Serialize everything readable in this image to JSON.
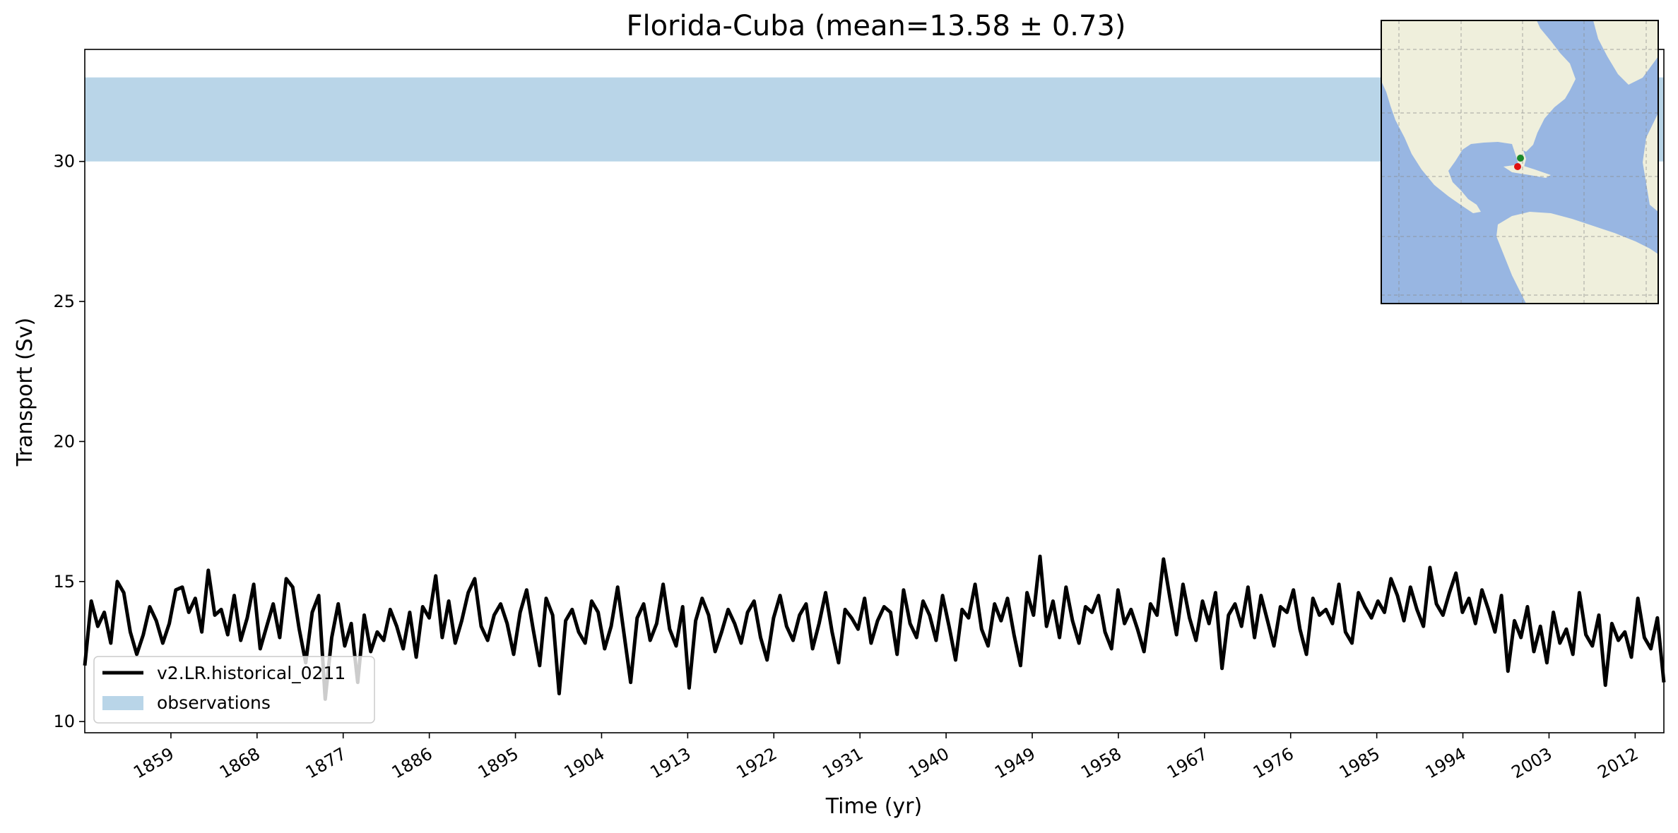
{
  "chart_data": {
    "type": "line",
    "title": "Florida-Cuba (mean=13.58 ± 0.73)",
    "xlabel": "Time (yr)",
    "ylabel": "Transport (Sv)",
    "xlim": [
      1850,
      2015
    ],
    "ylim": [
      9.6,
      34.0
    ],
    "xticks": [
      1859,
      1868,
      1877,
      1886,
      1895,
      1904,
      1913,
      1922,
      1931,
      1940,
      1949,
      1958,
      1967,
      1976,
      1985,
      1994,
      2003,
      2012
    ],
    "yticks": [
      10,
      15,
      20,
      25,
      30
    ],
    "grid": false,
    "legend_position": "lower-left",
    "series": [
      {
        "name": "v2.LR.historical_0211",
        "color": "#000000",
        "x_start": 1850,
        "x_end": 2015,
        "approx_mean": 13.6,
        "approx_range": [
          10.7,
          15.9
        ],
        "values": [
          12.0,
          14.3,
          13.4,
          13.9,
          12.8,
          15.0,
          14.6,
          13.2,
          12.4,
          13.1,
          14.1,
          13.6,
          12.8,
          13.5,
          14.7,
          14.8,
          13.9,
          14.4,
          13.2,
          15.4,
          13.8,
          14.0,
          13.1,
          14.5,
          12.9,
          13.7,
          14.9,
          12.6,
          13.4,
          14.2,
          13.0,
          15.1,
          14.8,
          13.3,
          12.1,
          13.9,
          14.5,
          10.8,
          13.0,
          14.2,
          12.7,
          13.5,
          11.4,
          13.8,
          12.5,
          13.2,
          12.9,
          14.0,
          13.4,
          12.6,
          13.9,
          12.3,
          14.1,
          13.7,
          15.2,
          13.0,
          14.3,
          12.8,
          13.6,
          14.6,
          15.1,
          13.4,
          12.9,
          13.8,
          14.2,
          13.5,
          12.4,
          13.9,
          14.7,
          13.3,
          12.0,
          14.4,
          13.8,
          11.0,
          13.6,
          14.0,
          13.2,
          12.8,
          14.3,
          13.9,
          12.6,
          13.4,
          14.8,
          13.1,
          11.4,
          13.7,
          14.2,
          12.9,
          13.5,
          14.9,
          13.3,
          12.7,
          14.1,
          11.2,
          13.6,
          14.4,
          13.8,
          12.5,
          13.2,
          14.0,
          13.5,
          12.8,
          13.9,
          14.3,
          13.0,
          12.2,
          13.7,
          14.5,
          13.4,
          12.9,
          13.8,
          14.2,
          12.6,
          13.5,
          14.6,
          13.2,
          12.1,
          14.0,
          13.7,
          13.3,
          14.4,
          12.8,
          13.6,
          14.1,
          13.9,
          12.4,
          14.7,
          13.5,
          13.0,
          14.3,
          13.8,
          12.9,
          14.5,
          13.4,
          12.2,
          14.0,
          13.7,
          14.9,
          13.3,
          12.7,
          14.2,
          13.6,
          14.4,
          13.1,
          12.0,
          14.6,
          13.8,
          15.9,
          13.4,
          14.3,
          13.0,
          14.8,
          13.6,
          12.8,
          14.1,
          13.9,
          14.5,
          13.2,
          12.6,
          14.7,
          13.5,
          14.0,
          13.3,
          12.5,
          14.2,
          13.8,
          15.8,
          14.4,
          13.1,
          14.9,
          13.7,
          12.9,
          14.3,
          13.5,
          14.6,
          11.9,
          13.8,
          14.2,
          13.4,
          14.8,
          13.0,
          14.5,
          13.6,
          12.7,
          14.1,
          13.9,
          14.7,
          13.3,
          12.4,
          14.4,
          13.8,
          14.0,
          13.5,
          14.9,
          13.2,
          12.8,
          14.6,
          14.1,
          13.7,
          14.3,
          13.9,
          15.1,
          14.5,
          13.6,
          14.8,
          14.0,
          13.4,
          15.5,
          14.2,
          13.8,
          14.6,
          15.3,
          13.9,
          14.4,
          13.5,
          14.7,
          14.0,
          13.2,
          14.5,
          11.8,
          13.6,
          13.0,
          14.1,
          12.5,
          13.4,
          12.1,
          13.9,
          12.8,
          13.3,
          12.4,
          14.6,
          13.1,
          12.7,
          13.8,
          11.3,
          13.5,
          12.9,
          13.2,
          12.3,
          14.4,
          13.0,
          12.6,
          13.7,
          11.4
        ]
      }
    ],
    "observations_band": {
      "name": "observations",
      "color": "#b9d5e8",
      "ymin": 30.0,
      "ymax": 33.0
    }
  },
  "inset_map": {
    "land_color": "#efefdc",
    "ocean_color": "#98b6e2",
    "markers": [
      {
        "label": "green",
        "color": "#1a8a2a"
      },
      {
        "label": "red",
        "color": "#e01010"
      }
    ]
  }
}
